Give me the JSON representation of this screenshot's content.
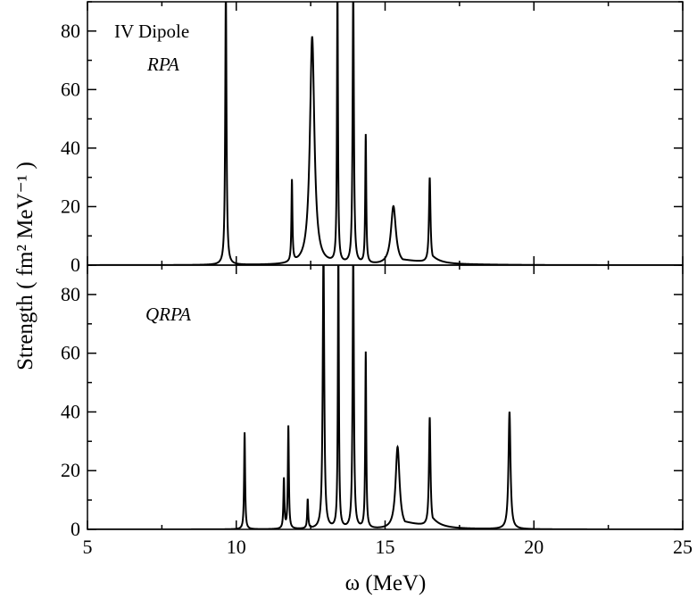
{
  "chart_data": [
    {
      "type": "line",
      "panel": "top",
      "annotations": [
        "IV Dipole",
        "RPA"
      ],
      "xlim": [
        5,
        25
      ],
      "ylim": [
        0,
        90
      ],
      "x_ticks": [
        5,
        10,
        15,
        20,
        25
      ],
      "y_ticks": [
        0,
        20,
        40,
        60,
        80
      ],
      "peaks": [
        {
          "x": 9.65,
          "y": 95,
          "w": 0.025,
          "tail": 0
        },
        {
          "x": 11.87,
          "y": 28,
          "w": 0.02,
          "tail": 0
        },
        {
          "x": 12.55,
          "y": 78,
          "w": 0.09,
          "tail": 0.5
        },
        {
          "x": 13.4,
          "y": 95,
          "w": 0.02,
          "tail": 0
        },
        {
          "x": 13.93,
          "y": 95,
          "w": 0.025,
          "tail": 0
        },
        {
          "x": 14.35,
          "y": 44,
          "w": 0.02,
          "tail": 0
        },
        {
          "x": 15.28,
          "y": 20,
          "w": 0.1,
          "tail": 2.5
        },
        {
          "x": 16.5,
          "y": 29,
          "w": 0.03,
          "tail": 0.5
        }
      ]
    },
    {
      "type": "line",
      "panel": "bottom",
      "annotations": [
        "QRPA"
      ],
      "xlim": [
        5,
        25
      ],
      "ylim": [
        0,
        90
      ],
      "x_ticks": [
        5,
        10,
        15,
        20,
        25
      ],
      "y_ticks": [
        0,
        20,
        40,
        60,
        80
      ],
      "peaks": [
        {
          "x": 10.28,
          "y": 33,
          "w": 0.02,
          "tail": 0
        },
        {
          "x": 11.6,
          "y": 17,
          "w": 0.02,
          "tail": 0
        },
        {
          "x": 11.75,
          "y": 35,
          "w": 0.02,
          "tail": 0
        },
        {
          "x": 12.4,
          "y": 10,
          "w": 0.02,
          "tail": 0
        },
        {
          "x": 12.93,
          "y": 95,
          "w": 0.03,
          "tail": 0
        },
        {
          "x": 13.43,
          "y": 95,
          "w": 0.02,
          "tail": 0
        },
        {
          "x": 13.93,
          "y": 95,
          "w": 0.025,
          "tail": 0
        },
        {
          "x": 14.35,
          "y": 60,
          "w": 0.02,
          "tail": 0
        },
        {
          "x": 15.42,
          "y": 28,
          "w": 0.08,
          "tail": 2
        },
        {
          "x": 16.5,
          "y": 37,
          "w": 0.03,
          "tail": 0.5
        },
        {
          "x": 19.18,
          "y": 40,
          "w": 0.04,
          "tail": 0.3
        }
      ]
    }
  ],
  "xlabel": "ω   (MeV)",
  "ylabel": "Strength  ( fm² MeV⁻¹ )"
}
